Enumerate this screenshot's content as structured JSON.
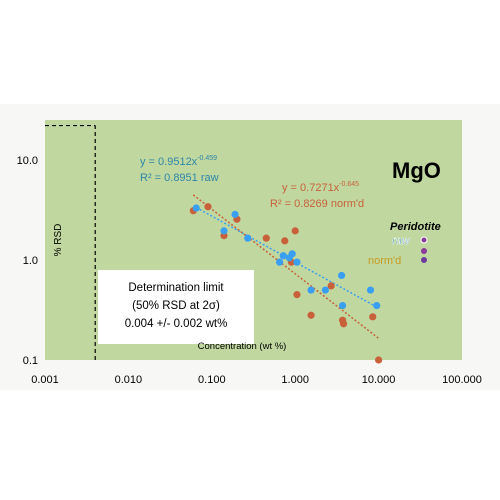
{
  "chart_data": {
    "type": "scatter",
    "title": "MgO",
    "xlabel": "Concentration (wt %)",
    "ylabel": "% RSD",
    "x_scale": "log",
    "y_scale": "log",
    "xlim": [
      0.001,
      100
    ],
    "ylim": [
      0.1,
      25
    ],
    "x_ticks": [
      "0.001",
      "0.010",
      "0.100",
      "1.000",
      "10.000",
      "100.000"
    ],
    "y_ticks": [
      "0.1",
      "1.0",
      "10.0"
    ],
    "grid": false,
    "colors": {
      "plot_bg": "#c0d8a0",
      "raw": "#3a9ff0",
      "normd": "#c8603a",
      "raw_eq_text": "#2f86a8",
      "normd_eq_text": "#c8603a",
      "raw_legend_text": "#2f86a8",
      "normd_legend_text": "#c89a20",
      "raw_legend_marker": "#8a3a9a",
      "normd_legend_marker": "#6a3aa0"
    },
    "legend": {
      "title": "Peridotite",
      "items": [
        "raw",
        "norm'd"
      ]
    },
    "equations": {
      "raw_eq": "y = 0.9512x",
      "raw_exp": "-0.459",
      "raw_r2": "R² = 0.8951  raw",
      "normd_eq": "y = 0.7271x",
      "normd_exp": "-0.645",
      "normd_r2": "R² = 0.8269 norm'd"
    },
    "annotation": {
      "line1": "Determination limit",
      "line2": "(50% RSD at 2σ)",
      "line3": "0.004 +/- 0.002 wt%"
    },
    "determination_limit_x": 0.004,
    "determination_limit_y": 22,
    "series": [
      {
        "name": "raw",
        "points": [
          [
            0.065,
            3.3
          ],
          [
            0.14,
            1.95
          ],
          [
            0.19,
            2.85
          ],
          [
            0.27,
            1.65
          ],
          [
            0.65,
            0.95
          ],
          [
            0.72,
            1.1
          ],
          [
            0.85,
            1.05
          ],
          [
            0.92,
            1.15
          ],
          [
            1.05,
            0.95
          ],
          [
            1.55,
            0.5
          ],
          [
            2.3,
            0.5
          ],
          [
            3.6,
            0.7
          ],
          [
            3.7,
            0.35
          ],
          [
            8.0,
            0.5
          ],
          [
            9.5,
            0.35
          ]
        ],
        "trend": {
          "a": 0.9512,
          "b": -0.459,
          "x_range": [
            0.065,
            9.5
          ]
        }
      },
      {
        "name": "norm'd",
        "points": [
          [
            0.06,
            3.1
          ],
          [
            0.09,
            3.4
          ],
          [
            0.14,
            1.75
          ],
          [
            0.2,
            2.55
          ],
          [
            0.45,
            1.65
          ],
          [
            0.75,
            1.55
          ],
          [
            0.9,
            0.95
          ],
          [
            1.0,
            1.95
          ],
          [
            1.05,
            0.45
          ],
          [
            1.55,
            0.28
          ],
          [
            2.7,
            0.55
          ],
          [
            3.7,
            0.25
          ],
          [
            3.8,
            0.23
          ],
          [
            8.5,
            0.27
          ],
          [
            10.0,
            0.1
          ]
        ],
        "trend": {
          "a": 0.7271,
          "b": -0.645,
          "x_range": [
            0.06,
            10.0
          ]
        }
      }
    ]
  }
}
